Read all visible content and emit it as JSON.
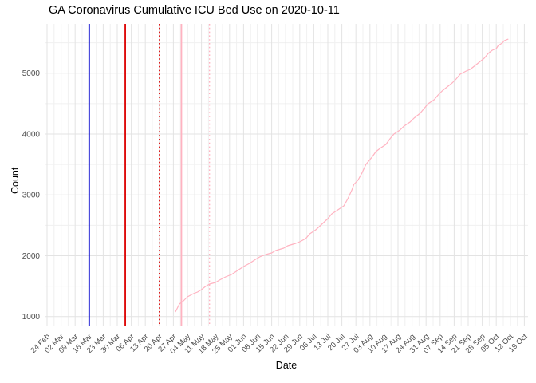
{
  "window": {
    "background": "#ffffff"
  },
  "chart_data": {
    "type": "line",
    "title": "GA Coronavirus Cumulative ICU Bed Use on 2020-10-11",
    "xlabel": "Date",
    "ylabel": "Count",
    "legend": "none",
    "grid": "major+minor",
    "grid_major_color": "#e3e3e3",
    "grid_minor_color": "#f0f0f0",
    "axis_text_color": "#4d4d4d",
    "x_domain": [
      "2020-02-24",
      "2020-10-19"
    ],
    "x_tick_interval_days": 7,
    "x_tick_labels": [
      "24 Feb",
      "02 Mar",
      "09 Mar",
      "16 Mar",
      "23 Mar",
      "30 Mar",
      "06 Apr",
      "13 Apr",
      "20 Apr",
      "27 Apr",
      "04 May",
      "11 May",
      "18 May",
      "25 May",
      "01 Jun",
      "08 Jun",
      "15 Jun",
      "22 Jun",
      "29 Jun",
      "06 Jul",
      "13 Jul",
      "20 Jul",
      "27 Jul",
      "03 Aug",
      "10 Aug",
      "17 Aug",
      "24 Aug",
      "31 Aug",
      "07 Sep",
      "14 Sep",
      "21 Sep",
      "28 Sep",
      "05 Oct",
      "12 Oct",
      "19 Oct"
    ],
    "y_ticks": [
      1000,
      2000,
      3000,
      4000,
      5000
    ],
    "y_tick_labels": [
      "1000",
      "2000",
      "3000",
      "4000",
      "5000"
    ],
    "y_minor_ticks": [
      1500,
      2500,
      3500,
      4500,
      5500
    ],
    "ylim": [
      840,
      5810
    ],
    "event_lines": [
      {
        "date": "2020-03-16",
        "color": "#0000cd",
        "style": "solid"
      },
      {
        "date": "2020-04-03",
        "color": "#dc0000",
        "style": "solid"
      },
      {
        "date": "2020-04-20",
        "color": "#dc0000",
        "style": "dotted"
      },
      {
        "date": "2020-05-01",
        "color": "#ffb3c1",
        "style": "solid"
      },
      {
        "date": "2020-05-15",
        "color": "#ffb3c1",
        "style": "dotted"
      }
    ],
    "series": [
      {
        "name": "cumulative-icu-beds",
        "color": "#ffb3c1",
        "points": [
          [
            "2020-04-28",
            1075
          ],
          [
            "2020-04-30",
            1206
          ],
          [
            "2020-05-02",
            1258
          ],
          [
            "2020-05-04",
            1324
          ],
          [
            "2020-05-07",
            1376
          ],
          [
            "2020-05-09",
            1403
          ],
          [
            "2020-05-11",
            1442
          ],
          [
            "2020-05-13",
            1494
          ],
          [
            "2020-05-15",
            1534
          ],
          [
            "2020-05-18",
            1560
          ],
          [
            "2020-05-20",
            1599
          ],
          [
            "2020-05-23",
            1652
          ],
          [
            "2020-05-26",
            1691
          ],
          [
            "2020-05-29",
            1757
          ],
          [
            "2020-06-01",
            1822
          ],
          [
            "2020-06-04",
            1875
          ],
          [
            "2020-06-07",
            1940
          ],
          [
            "2020-06-09",
            1980
          ],
          [
            "2020-06-12",
            2019
          ],
          [
            "2020-06-15",
            2045
          ],
          [
            "2020-06-17",
            2085
          ],
          [
            "2020-06-21",
            2124
          ],
          [
            "2020-06-23",
            2163
          ],
          [
            "2020-06-27",
            2203
          ],
          [
            "2020-06-29",
            2229
          ],
          [
            "2020-07-02",
            2281
          ],
          [
            "2020-07-04",
            2360
          ],
          [
            "2020-07-07",
            2425
          ],
          [
            "2020-07-10",
            2517
          ],
          [
            "2020-07-13",
            2609
          ],
          [
            "2020-07-15",
            2688
          ],
          [
            "2020-07-18",
            2753
          ],
          [
            "2020-07-21",
            2819
          ],
          [
            "2020-07-23",
            2937
          ],
          [
            "2020-07-25",
            3081
          ],
          [
            "2020-07-26",
            3173
          ],
          [
            "2020-07-28",
            3239
          ],
          [
            "2020-07-30",
            3357
          ],
          [
            "2020-08-01",
            3501
          ],
          [
            "2020-08-04",
            3619
          ],
          [
            "2020-08-06",
            3711
          ],
          [
            "2020-08-08",
            3763
          ],
          [
            "2020-08-11",
            3829
          ],
          [
            "2020-08-13",
            3921
          ],
          [
            "2020-08-15",
            4000
          ],
          [
            "2020-08-18",
            4065
          ],
          [
            "2020-08-20",
            4131
          ],
          [
            "2020-08-23",
            4196
          ],
          [
            "2020-08-25",
            4262
          ],
          [
            "2020-08-28",
            4340
          ],
          [
            "2020-08-30",
            4419
          ],
          [
            "2020-09-01",
            4498
          ],
          [
            "2020-09-04",
            4563
          ],
          [
            "2020-09-06",
            4642
          ],
          [
            "2020-09-08",
            4708
          ],
          [
            "2020-09-10",
            4760
          ],
          [
            "2020-09-13",
            4839
          ],
          [
            "2020-09-15",
            4904
          ],
          [
            "2020-09-17",
            4983
          ],
          [
            "2020-09-20",
            5036
          ],
          [
            "2020-09-22",
            5062
          ],
          [
            "2020-09-25",
            5140
          ],
          [
            "2020-09-27",
            5193
          ],
          [
            "2020-09-29",
            5245
          ],
          [
            "2020-10-01",
            5324
          ],
          [
            "2020-10-03",
            5376
          ],
          [
            "2020-10-05",
            5403
          ],
          [
            "2020-10-06",
            5455
          ],
          [
            "2020-10-08",
            5495
          ],
          [
            "2020-10-09",
            5534
          ],
          [
            "2020-10-11",
            5560
          ]
        ]
      }
    ]
  }
}
